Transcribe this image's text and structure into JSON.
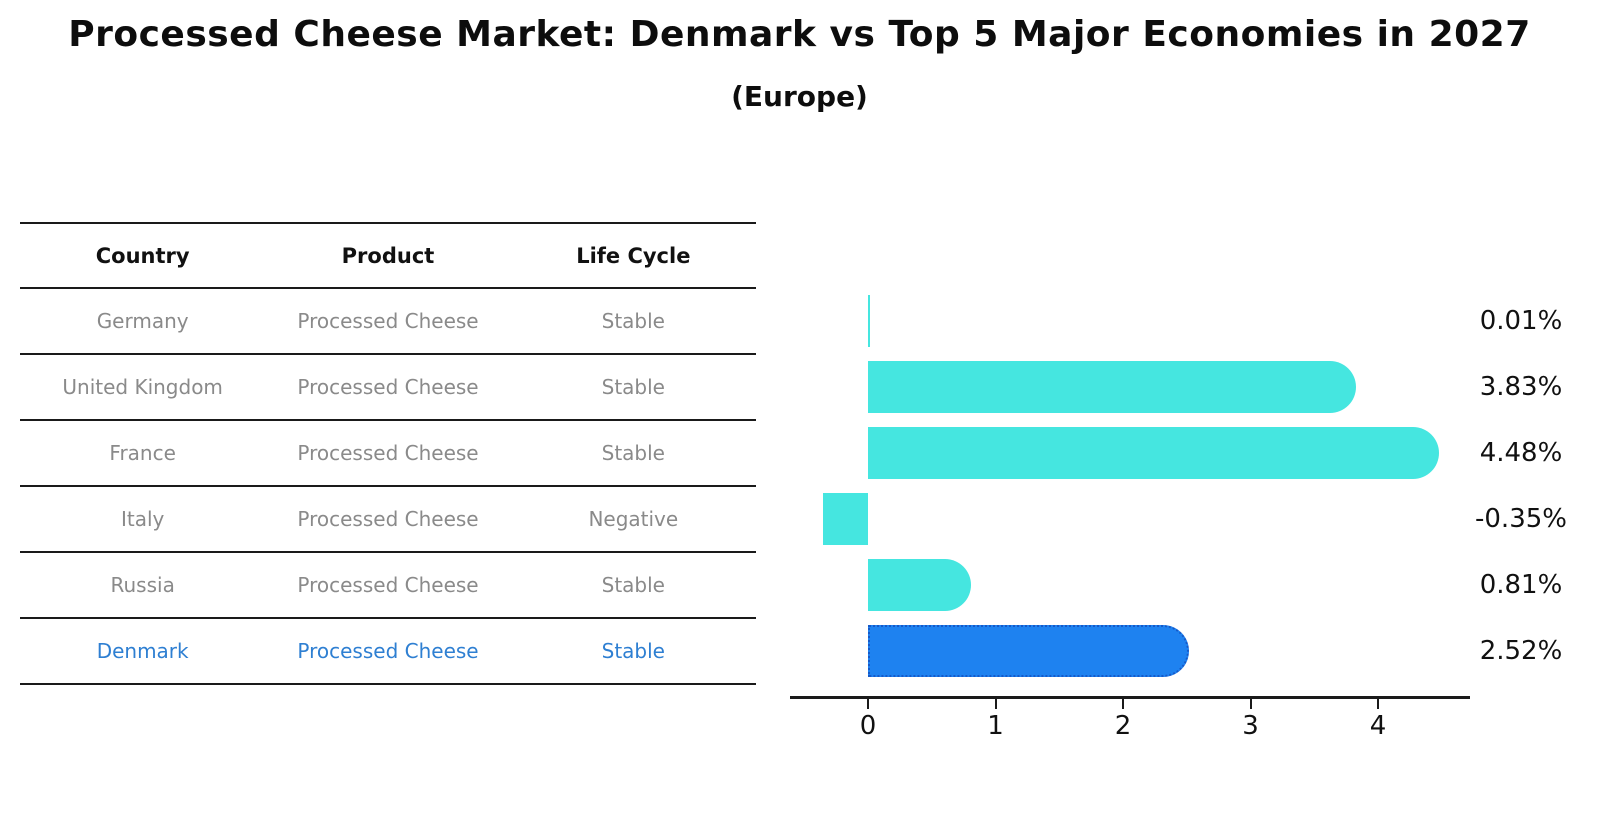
{
  "title": "Processed Cheese Market: Denmark vs Top 5 Major Economies in 2027",
  "subtitle": "(Europe)",
  "table": {
    "headers": [
      "Country",
      "Product",
      "Life Cycle"
    ],
    "rows": [
      {
        "country": "Germany",
        "product": "Processed Cheese",
        "life_cycle": "Stable",
        "highlight": false
      },
      {
        "country": "United Kingdom",
        "product": "Processed Cheese",
        "life_cycle": "Stable",
        "highlight": false
      },
      {
        "country": "France",
        "product": "Processed Cheese",
        "life_cycle": "Stable",
        "highlight": false
      },
      {
        "country": "Italy",
        "product": "Processed Cheese",
        "life_cycle": "Negative",
        "highlight": false
      },
      {
        "country": "Russia",
        "product": "Processed Cheese",
        "life_cycle": "Stable",
        "highlight": false
      },
      {
        "country": "Denmark",
        "product": "Processed Cheese",
        "life_cycle": "Stable",
        "highlight": true
      }
    ]
  },
  "chart_data": {
    "type": "bar",
    "orientation": "horizontal",
    "title": "Processed Cheese Market: Denmark vs Top 5 Major Economies in 2027",
    "subtitle": "(Europe)",
    "categories": [
      "Germany",
      "United Kingdom",
      "France",
      "Italy",
      "Russia",
      "Denmark"
    ],
    "values": [
      0.01,
      3.83,
      4.48,
      -0.35,
      0.81,
      2.52
    ],
    "value_labels": [
      "0.01%",
      "3.83%",
      "4.48%",
      "-0.35%",
      "0.81%",
      "2.52%"
    ],
    "x_ticks": [
      0,
      1,
      2,
      3,
      4
    ],
    "xlim": [
      -0.62,
      4.72
    ],
    "grid": false,
    "legend": "none",
    "highlight_category": "Denmark",
    "colors": {
      "bar": "#45E6E0",
      "highlight_bar": "#1E82F0",
      "highlight_border": "#1659C8",
      "row_text": "#8a8a8a",
      "highlight_text": "#2E7FD2",
      "axis": "#1a1a1a"
    }
  }
}
